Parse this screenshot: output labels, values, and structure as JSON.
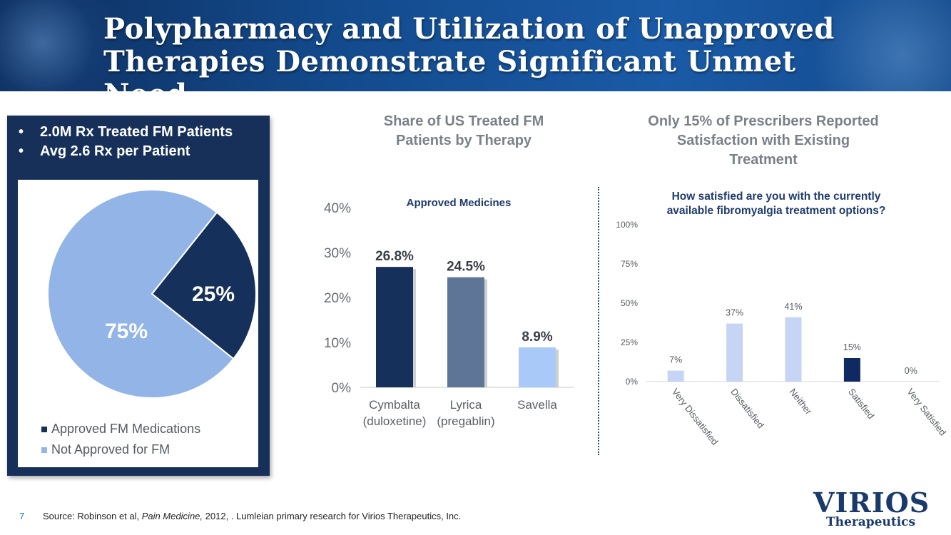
{
  "header": {
    "title_line1": "Polypharmacy and Utilization of Unapproved",
    "title_line2": "Therapies Demonstrate Significant Unmet Need"
  },
  "left_panel": {
    "bullets": [
      "2.0M Rx Treated FM Patients",
      "Avg 2.6 Rx per Patient"
    ]
  },
  "bar_section": {
    "title": "Share of US Treated FM Patients by Therapy"
  },
  "sat_section": {
    "title": "Only 15% of Prescribers Reported Satisfaction with Existing Treatment"
  },
  "footer": {
    "page_number": "7",
    "source_prefix": "Source: Robinson et al, ",
    "source_journal": "Pain Medicine,",
    "source_suffix": " 2012, . Lumleian primary research for Virios Therapeutics, Inc."
  },
  "logo": {
    "name": "VIRIOS",
    "sub": "Therapeutics"
  },
  "colors": {
    "header": "#134a8c",
    "navy": "#16305a",
    "approved": "#15305a",
    "not_approved": "#93b4e6",
    "lyrica": "#5f7598",
    "savella": "#a9caf9",
    "sat_light": "#c5d5f3",
    "sat_dark": "#0f2a62"
  },
  "chart_data": [
    {
      "type": "pie",
      "slices": [
        {
          "label": "Approved FM Medications",
          "value": 25,
          "display": "25%",
          "color": "#15305a"
        },
        {
          "label": "Not Approved for FM",
          "value": 75,
          "display": "75%",
          "color": "#93b4e6"
        }
      ],
      "legend": [
        "Approved FM Medications",
        "Not Approved for FM"
      ]
    },
    {
      "type": "bar",
      "title": "Share of US Treated FM Patients by Therapy",
      "annotation": "Approved Medicines",
      "categories": [
        {
          "line1": "Cymbalta",
          "line2": "(duloxetine)"
        },
        {
          "line1": "Lyrica",
          "line2": "(pregablin)"
        },
        {
          "line1": "Savella",
          "line2": ""
        }
      ],
      "values": [
        26.8,
        24.5,
        8.9
      ],
      "value_labels": [
        "26.8%",
        "24.5%",
        "8.9%"
      ],
      "colors": [
        "#15305a",
        "#5f7598",
        "#a9caf9"
      ],
      "ylim": [
        0,
        40
      ],
      "yticks": [
        "0%",
        "10%",
        "20%",
        "30%",
        "40%"
      ]
    },
    {
      "type": "bar",
      "title": "How satisfied are you with the currently available fibromyalgia treatment options?",
      "title_line1": "How satisfied are you with the currently",
      "title_line2": "available fibromyalgia treatment options?",
      "categories": [
        "Very Dissatisfied",
        "Dissatisfied",
        "Neither",
        "Satisfied",
        "Very Satisfied"
      ],
      "values": [
        7,
        37,
        41,
        15,
        0
      ],
      "value_labels": [
        "7%",
        "37%",
        "41%",
        "15%",
        "0%"
      ],
      "colors": [
        "#c5d5f3",
        "#c5d5f3",
        "#c5d5f3",
        "#0f2a62",
        "#c5d5f3"
      ],
      "ylim": [
        0,
        100
      ],
      "yticks": [
        "0%",
        "25%",
        "50%",
        "75%",
        "100%"
      ]
    }
  ]
}
